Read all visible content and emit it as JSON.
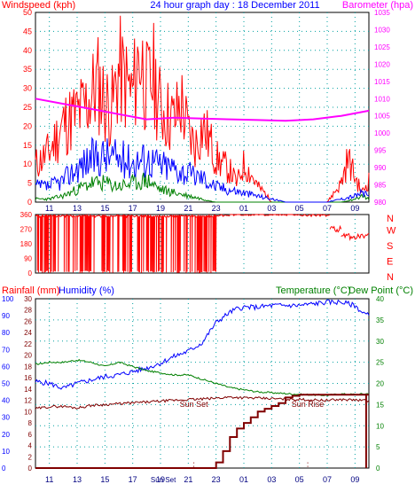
{
  "header": {
    "left_label": "Windspeed (kph)",
    "title": "24 hour graph day : 18 December 2011",
    "right_label": "Barometer (hpa)"
  },
  "colors": {
    "background": "#ffffff",
    "frame": "#000000",
    "grid": "#00a0a0",
    "wind_speed": "#ff0000",
    "wind_avg": "#0000ff",
    "wind_green": "#008000",
    "barometer": "#ff00ff",
    "wind_dir": "#ff0000",
    "humidity": "#0000ff",
    "temperature": "#008000",
    "dew_point": "#800000",
    "rainfall": "#800000",
    "left_labels": "#ff0000",
    "bottom_rain_axis": "#0000ff",
    "bottom_temp_axis": "#008000",
    "sun_marker": "#800000"
  },
  "chart_data": [
    {
      "type": "line",
      "panel": "wind",
      "title": "24 hour graph day : 18 December 2011",
      "ylabel": "Windspeed (kph)",
      "ylim": [
        0,
        50
      ],
      "y_ticks": [
        0,
        5,
        10,
        15,
        20,
        25,
        30,
        35,
        40,
        45,
        50
      ],
      "y2label": "Barometer (hpa)",
      "y2lim": [
        980,
        1035
      ],
      "y2_ticks": [
        980,
        985,
        990,
        995,
        1000,
        1005,
        1010,
        1015,
        1020,
        1025,
        1030,
        1035
      ],
      "x_ticks": [
        "11",
        "13",
        "15",
        "17",
        "19",
        "21",
        "23",
        "01",
        "03",
        "05",
        "07",
        "09"
      ],
      "grid": true,
      "series": [
        {
          "key": "gust",
          "color": "#ff0000",
          "x": [
            0,
            1,
            2,
            3,
            3.5,
            4,
            4.5,
            5,
            5.5,
            6,
            6.5,
            7,
            7.5,
            8,
            8.5,
            9,
            9.5,
            10,
            10.5,
            11,
            11.5,
            12,
            12.5,
            13,
            13.5,
            14,
            14.5,
            15,
            15.5,
            16,
            16.5,
            17,
            17.5,
            18,
            18.5,
            19,
            19.5,
            20,
            20.5,
            21,
            21.5,
            22,
            22.5,
            23,
            23.5,
            24
          ],
          "values": [
            12,
            16,
            25,
            28,
            30,
            34,
            38,
            32,
            30,
            42,
            38,
            34,
            48,
            36,
            40,
            30,
            28,
            26,
            32,
            22,
            18,
            24,
            20,
            14,
            12,
            10,
            6,
            12,
            9,
            5,
            3,
            0,
            0,
            0,
            0,
            0,
            0,
            0,
            0,
            0,
            3,
            6,
            14,
            8,
            3,
            7
          ]
        },
        {
          "key": "average",
          "color": "#0000ff",
          "x": [
            0,
            1,
            2,
            3,
            4,
            5,
            6,
            7,
            8,
            9,
            10,
            11,
            12,
            13,
            14,
            15,
            16,
            17,
            18,
            19,
            20,
            21,
            22,
            23,
            23.5,
            24
          ],
          "values": [
            5,
            5,
            7,
            11,
            14,
            15,
            14,
            13,
            14,
            12,
            11,
            9,
            8,
            5,
            4,
            3,
            2,
            1,
            0,
            0,
            0,
            0,
            1,
            2,
            3,
            2
          ]
        },
        {
          "key": "lull",
          "color": "#008000",
          "x": [
            0,
            1,
            2,
            3,
            4,
            5,
            6,
            7,
            8,
            9,
            10,
            11,
            12,
            13,
            14,
            15,
            16,
            17,
            18,
            19,
            20,
            21,
            22,
            23,
            23.5,
            24
          ],
          "values": [
            1,
            1,
            2,
            4,
            6,
            6,
            5,
            6,
            7,
            4,
            3,
            2,
            1,
            0,
            0,
            0,
            0,
            0,
            0,
            0,
            0,
            0,
            0,
            1,
            2,
            1
          ]
        },
        {
          "key": "barometer",
          "color": "#ff00ff",
          "axis": "y2",
          "x": [
            0,
            2,
            4,
            6,
            8,
            10,
            12,
            14,
            16,
            18,
            20,
            22,
            24
          ],
          "values": [
            1010,
            1008.5,
            1007,
            1005.5,
            1004,
            1004.5,
            1004.2,
            1004,
            1003.8,
            1003.6,
            1004,
            1005,
            1006.5
          ]
        }
      ]
    },
    {
      "type": "scatter",
      "panel": "wind_direction",
      "ylim": [
        0,
        360
      ],
      "y_ticks": [
        0,
        90,
        180,
        270,
        360
      ],
      "right_labels": [
        "N",
        "W",
        "S",
        "E",
        "N"
      ],
      "segments": [
        {
          "from": 0,
          "to": 13.2,
          "level": 350,
          "drops": true
        },
        {
          "from": 13.2,
          "to": 14.0,
          "level": 355,
          "drops": false
        },
        {
          "from": 14.0,
          "to": 19.0,
          "level": 360,
          "drops": false
        },
        {
          "from": 19.0,
          "to": 21.2,
          "level": 355,
          "drops": false
        },
        {
          "from": 21.2,
          "to": 22.0,
          "level": 270,
          "drops": false
        },
        {
          "from": 22.0,
          "to": 24.0,
          "level": 225,
          "drops": false
        }
      ]
    },
    {
      "type": "line",
      "panel": "weather",
      "left_label_rain": "Rainfall (mm)",
      "left_label_hum": "Humidity (%)",
      "right_label_temp": "Temperature (°C)",
      "right_label_dew": "Dew Point (°C)",
      "humidity_ylim": [
        0,
        100
      ],
      "humidity_ticks": [
        0,
        10,
        20,
        30,
        40,
        50,
        60,
        70,
        80,
        90,
        100
      ],
      "rain_ylim": [
        0,
        30
      ],
      "rain_ticks": [
        0,
        2,
        4,
        6,
        8,
        10,
        12,
        14,
        16,
        18,
        20,
        22,
        24,
        26,
        28,
        30
      ],
      "temp_ylim": [
        0,
        40
      ],
      "temp_ticks": [
        0,
        5,
        10,
        15,
        20,
        25,
        30,
        35,
        40
      ],
      "x_ticks": [
        "11",
        "13",
        "15",
        "17",
        "19",
        "Sun Set",
        "21",
        "23",
        "01",
        "03",
        "05",
        "07",
        "09"
      ],
      "annotations": [
        {
          "text": "Sun Set",
          "x": 11.4
        },
        {
          "text": "Sun Rise",
          "x": 19.6
        }
      ],
      "series": [
        {
          "key": "humidity",
          "color": "#0000ff",
          "x": [
            0,
            1,
            2,
            3,
            4,
            5,
            6,
            7,
            8,
            9,
            10,
            11,
            12,
            13,
            14,
            14.5,
            15,
            16,
            17,
            18,
            19,
            20,
            21,
            22,
            23,
            23.5,
            24
          ],
          "values": [
            51,
            50,
            47,
            50,
            52,
            54,
            55,
            57,
            59,
            62,
            66,
            69,
            74,
            86,
            92,
            94,
            95,
            95,
            96,
            96,
            96,
            97,
            98,
            98,
            96,
            92,
            90
          ]
        },
        {
          "key": "temperature",
          "color": "#008000",
          "x": [
            0,
            1,
            2,
            3,
            4,
            5,
            6,
            7,
            8,
            9,
            10,
            11,
            12,
            13,
            14,
            15,
            16,
            17,
            18,
            19,
            20,
            21,
            22,
            23,
            24
          ],
          "values": [
            24.5,
            25,
            25,
            25.5,
            25,
            24,
            25,
            24,
            23,
            22.5,
            22,
            22,
            21,
            20,
            19,
            18.5,
            18,
            17.8,
            17.6,
            17.4,
            17.3,
            17.2,
            17.5,
            17.4,
            17.6
          ]
        },
        {
          "key": "dew_point",
          "color": "#800000",
          "x": [
            0,
            1,
            2,
            3,
            4,
            5,
            6,
            7,
            8,
            9,
            10,
            11,
            12,
            13,
            14,
            15,
            16,
            17,
            18,
            19,
            20,
            21,
            22,
            23,
            24
          ],
          "values": [
            14,
            14.5,
            14.6,
            14.2,
            14.8,
            15,
            15.2,
            15.4,
            15.6,
            15.8,
            16,
            16.2,
            16.3,
            16.5,
            16.8,
            16.6,
            16.5,
            16.4,
            16.3,
            16.2,
            16.1,
            16,
            16.2,
            16.1,
            15.9
          ]
        },
        {
          "key": "rainfall",
          "color": "#800000",
          "x": [
            0,
            12.5,
            13,
            13.5,
            14,
            14.5,
            15,
            15.5,
            16,
            16.5,
            17,
            17.5,
            18,
            18.5,
            19,
            20,
            21,
            22,
            23,
            23.8,
            24
          ],
          "values": [
            0,
            0,
            1,
            3,
            5.5,
            7,
            8,
            9,
            10,
            10.5,
            11,
            11.5,
            12.5,
            12.8,
            13,
            13,
            13,
            13,
            13,
            13,
            13
          ]
        }
      ]
    }
  ]
}
